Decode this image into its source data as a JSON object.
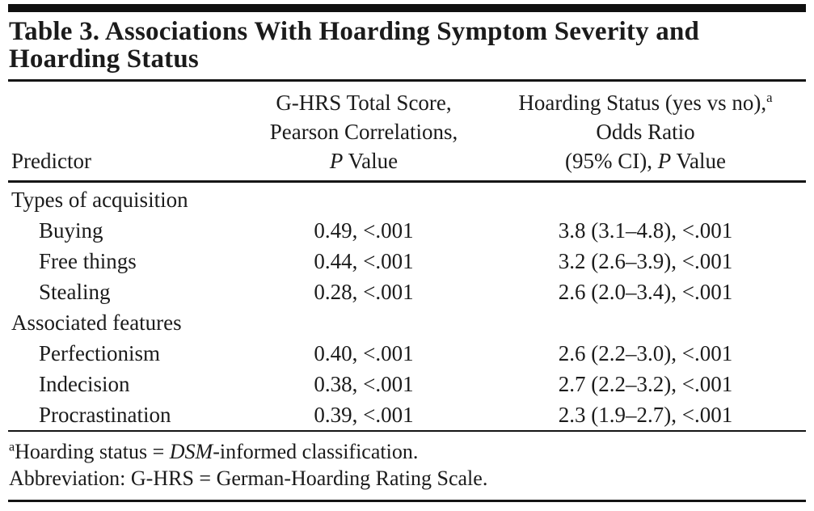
{
  "title": "Table 3. Associations With Hoarding Symptom Severity and Hoarding Status",
  "colors": {
    "background": "#ffffff",
    "text": "#1b1b1b",
    "rule": "#151515"
  },
  "header": {
    "col1": "Predictor",
    "col2": {
      "line1": "G-HRS Total Score,",
      "line2": "Pearson Correlations,",
      "line3_italic": "P",
      "line3_rest": " Value"
    },
    "col3": {
      "line1": "Hoarding Status (yes vs no),",
      "line1_sup": "a",
      "line2": "Odds Ratio",
      "line3_pre": "(95% CI), ",
      "line3_italic": "P",
      "line3_rest": " Value"
    }
  },
  "rows": [
    {
      "label": "Types of acquisition",
      "corr": "",
      "or": ""
    },
    {
      "label": "Buying",
      "corr": "0.49, <.001",
      "or": "3.8 (3.1–4.8), <.001"
    },
    {
      "label": "Free things",
      "corr": "0.44, <.001",
      "or": "3.2 (2.6–3.9), <.001"
    },
    {
      "label": "Stealing",
      "corr": "0.28, <.001",
      "or": "2.6 (2.0–3.4), <.001"
    },
    {
      "label": "Associated features",
      "corr": "",
      "or": ""
    },
    {
      "label": "Perfectionism",
      "corr": "0.40, <.001",
      "or": "2.6 (2.2–3.0), <.001"
    },
    {
      "label": "Indecision",
      "corr": "0.38, <.001",
      "or": "2.7 (2.2–3.2), <.001"
    },
    {
      "label": "Procrastination",
      "corr": "0.39, <.001",
      "or": "2.3 (1.9–2.7), <.001"
    }
  ],
  "footnotes": {
    "sup": "a",
    "line1_pre": "Hoarding status = ",
    "line1_italic": "DSM",
    "line1_post": "-informed classification.",
    "line2": "Abbreviation: G-HRS = German-Hoarding Rating Scale."
  }
}
